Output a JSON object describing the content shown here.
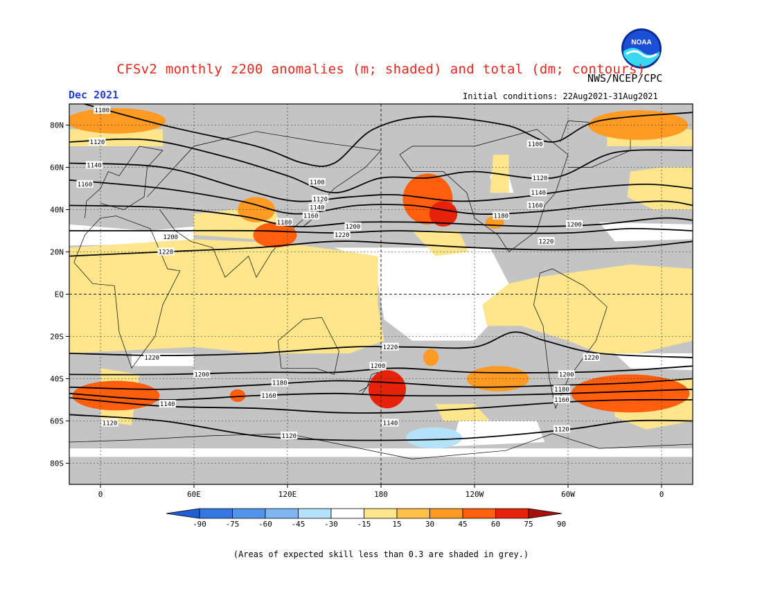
{
  "header": {
    "title": "CFSv2 monthly z200 anomalies (m; shaded) and total (dm; contours)",
    "agency": "NWS/NCEP/CPC",
    "month": "Dec 2021",
    "initial_conditions": "Initial conditions: 22Aug2021-31Aug2021",
    "logo_text": "NOAA"
  },
  "footnote": "(Areas of expected skill less than 0.3 are shaded in grey.)",
  "map": {
    "lat_ticks": [
      {
        "lat": 80,
        "label": "80N"
      },
      {
        "lat": 60,
        "label": "60N"
      },
      {
        "lat": 40,
        "label": "40N"
      },
      {
        "lat": 20,
        "label": "20N"
      },
      {
        "lat": 0,
        "label": "EQ"
      },
      {
        "lat": -20,
        "label": "20S"
      },
      {
        "lat": -40,
        "label": "40S"
      },
      {
        "lat": -60,
        "label": "60S"
      },
      {
        "lat": -80,
        "label": "80S"
      }
    ],
    "lon_ticks": [
      {
        "lon": 0,
        "label": "0"
      },
      {
        "lon": 60,
        "label": "60E"
      },
      {
        "lon": 120,
        "label": "120E"
      },
      {
        "lon": 180,
        "label": "180"
      },
      {
        "lon": 240,
        "label": "120W"
      },
      {
        "lon": 300,
        "label": "60W"
      },
      {
        "lon": 360,
        "label": "0"
      }
    ],
    "lon_range": [
      -20,
      380
    ],
    "lat_range": [
      -90,
      90
    ],
    "grey_color": "#c4c4c4",
    "anomaly_patches": [
      {
        "lon": 10,
        "lat": 82,
        "rx": 32,
        "ry": 6,
        "value": 50
      },
      {
        "lon": 345,
        "lat": 80,
        "rx": 32,
        "ry": 7,
        "value": 55
      },
      {
        "lon": 100,
        "lat": 40,
        "rx": 12,
        "ry": 6,
        "value": 50
      },
      {
        "lon": 112,
        "lat": 28,
        "rx": 14,
        "ry": 6,
        "value": 60
      },
      {
        "lon": 210,
        "lat": 45,
        "rx": 16,
        "ry": 12,
        "value": 70
      },
      {
        "lon": 220,
        "lat": 38,
        "rx": 9,
        "ry": 6,
        "value": 85
      },
      {
        "lon": 253,
        "lat": 34,
        "rx": 6,
        "ry": 3,
        "value": 50
      },
      {
        "lon": 10,
        "lat": -48,
        "rx": 28,
        "ry": 7,
        "value": 60
      },
      {
        "lon": 88,
        "lat": -48,
        "rx": 5,
        "ry": 3,
        "value": 65
      },
      {
        "lon": 184,
        "lat": -45,
        "rx": 12,
        "ry": 9,
        "value": 75
      },
      {
        "lon": 255,
        "lat": -40,
        "rx": 20,
        "ry": 6,
        "value": 55
      },
      {
        "lon": 212,
        "lat": -30,
        "rx": 5,
        "ry": 4,
        "value": 45
      },
      {
        "lon": 340,
        "lat": -47,
        "rx": 38,
        "ry": 9,
        "value": 65
      },
      {
        "lon": 214,
        "lat": -68,
        "rx": 18,
        "ry": 5,
        "value": -35
      },
      {
        "lon": 216,
        "lat": -68,
        "rx": 9,
        "ry": 3,
        "value": -45
      }
    ],
    "contours": [
      {
        "value": 1100,
        "label": "1100",
        "points": [
          [
            -20,
            92
          ],
          [
            40,
            80
          ],
          [
            100,
            70
          ],
          [
            130,
            62
          ],
          [
            150,
            62
          ],
          [
            175,
            78
          ],
          [
            210,
            84
          ],
          [
            260,
            80
          ],
          [
            290,
            72
          ],
          [
            320,
            82
          ],
          [
            380,
            86
          ]
        ]
      },
      {
        "value": 1120,
        "label": "1120",
        "points": [
          [
            -20,
            72
          ],
          [
            30,
            73
          ],
          [
            80,
            65
          ],
          [
            120,
            56
          ],
          [
            150,
            48
          ],
          [
            180,
            55
          ],
          [
            210,
            55
          ],
          [
            240,
            58
          ],
          [
            290,
            55
          ],
          [
            330,
            67
          ],
          [
            380,
            68
          ]
        ]
      },
      {
        "value": 1140,
        "label": "1140",
        "points": [
          [
            -20,
            62
          ],
          [
            40,
            60
          ],
          [
            90,
            50
          ],
          [
            125,
            44
          ],
          [
            160,
            46
          ],
          [
            190,
            47
          ],
          [
            230,
            44
          ],
          [
            270,
            46
          ],
          [
            310,
            50
          ],
          [
            350,
            52
          ],
          [
            380,
            50
          ]
        ]
      },
      {
        "value": 1160,
        "label": "1160",
        "points": [
          [
            -20,
            54
          ],
          [
            40,
            50
          ],
          [
            90,
            44
          ],
          [
            125,
            38
          ],
          [
            165,
            42
          ],
          [
            200,
            42
          ],
          [
            240,
            38
          ],
          [
            280,
            39
          ],
          [
            320,
            42
          ],
          [
            360,
            44
          ],
          [
            380,
            42
          ]
        ]
      },
      {
        "value": 1180,
        "label": "1180",
        "points": [
          [
            -20,
            42
          ],
          [
            40,
            41
          ],
          [
            90,
            37
          ],
          [
            125,
            32
          ],
          [
            165,
            34
          ],
          [
            205,
            34
          ],
          [
            240,
            33
          ],
          [
            280,
            32
          ],
          [
            320,
            33
          ],
          [
            360,
            36
          ],
          [
            380,
            35
          ]
        ]
      },
      {
        "value": 1200,
        "label": "1200",
        "points": [
          [
            -20,
            30
          ],
          [
            40,
            30
          ],
          [
            100,
            30
          ],
          [
            150,
            29
          ],
          [
            190,
            30
          ],
          [
            240,
            29
          ],
          [
            300,
            29
          ],
          [
            340,
            31
          ],
          [
            380,
            30
          ]
        ]
      },
      {
        "value": 1220,
        "label": "1220",
        "points": [
          [
            -20,
            18
          ],
          [
            40,
            20
          ],
          [
            100,
            22
          ],
          [
            150,
            25
          ],
          [
            190,
            24
          ],
          [
            240,
            22
          ],
          [
            290,
            21
          ],
          [
            340,
            22
          ],
          [
            380,
            25
          ]
        ]
      },
      {
        "value": 1220,
        "label": "1220",
        "points": [
          [
            -20,
            -28
          ],
          [
            40,
            -29
          ],
          [
            100,
            -28
          ],
          [
            160,
            -25
          ],
          [
            200,
            -25
          ],
          [
            240,
            -25
          ],
          [
            265,
            -18
          ],
          [
            285,
            -22
          ],
          [
            320,
            -28
          ],
          [
            380,
            -30
          ]
        ]
      },
      {
        "value": 1200,
        "label": "1200",
        "points": [
          [
            -20,
            -38
          ],
          [
            40,
            -38
          ],
          [
            100,
            -37
          ],
          [
            150,
            -37
          ],
          [
            190,
            -35
          ],
          [
            240,
            -37
          ],
          [
            300,
            -37
          ],
          [
            340,
            -36
          ],
          [
            380,
            -34
          ]
        ]
      },
      {
        "value": 1180,
        "label": "1180",
        "points": [
          [
            -20,
            -44
          ],
          [
            40,
            -45
          ],
          [
            100,
            -43
          ],
          [
            150,
            -41
          ],
          [
            190,
            -42
          ],
          [
            240,
            -44
          ],
          [
            300,
            -43
          ],
          [
            340,
            -42
          ],
          [
            380,
            -40
          ]
        ]
      },
      {
        "value": 1160,
        "label": "1160",
        "points": [
          [
            -20,
            -47
          ],
          [
            40,
            -50
          ],
          [
            100,
            -48
          ],
          [
            150,
            -47
          ],
          [
            190,
            -48
          ],
          [
            240,
            -48
          ],
          [
            300,
            -47
          ],
          [
            340,
            -46
          ],
          [
            380,
            -45
          ]
        ]
      },
      {
        "value": 1140,
        "label": "1140",
        "points": [
          [
            -20,
            -49
          ],
          [
            40,
            -53
          ],
          [
            100,
            -54
          ],
          [
            150,
            -56
          ],
          [
            190,
            -56
          ],
          [
            240,
            -54
          ],
          [
            300,
            -51
          ],
          [
            340,
            -50
          ],
          [
            380,
            -50
          ]
        ]
      },
      {
        "value": 1120,
        "label": "1120",
        "points": [
          [
            -20,
            -57
          ],
          [
            40,
            -60
          ],
          [
            100,
            -67
          ],
          [
            150,
            -69
          ],
          [
            200,
            -69
          ],
          [
            240,
            -68
          ],
          [
            300,
            -64
          ],
          [
            340,
            -60
          ],
          [
            380,
            -60
          ]
        ]
      }
    ],
    "contour_labels": [
      {
        "text": "1100",
        "lon": 1,
        "lat": 87
      },
      {
        "text": "1120",
        "lon": -2,
        "lat": 72
      },
      {
        "text": "1140",
        "lon": -4,
        "lat": 61
      },
      {
        "text": "1160",
        "lon": -10,
        "lat": 52
      },
      {
        "text": "1100",
        "lon": 139,
        "lat": 53
      },
      {
        "text": "1120",
        "lon": 141,
        "lat": 45
      },
      {
        "text": "1140",
        "lon": 139,
        "lat": 41
      },
      {
        "text": "1160",
        "lon": 135,
        "lat": 37
      },
      {
        "text": "1180",
        "lon": 118,
        "lat": 34
      },
      {
        "text": "1200",
        "lon": 162,
        "lat": 32
      },
      {
        "text": "1220",
        "lon": 155,
        "lat": 28
      },
      {
        "text": "1200",
        "lon": 45,
        "lat": 27
      },
      {
        "text": "1220",
        "lon": 42,
        "lat": 20
      },
      {
        "text": "1100",
        "lon": 279,
        "lat": 71
      },
      {
        "text": "1120",
        "lon": 282,
        "lat": 55
      },
      {
        "text": "1140",
        "lon": 281,
        "lat": 48
      },
      {
        "text": "1160",
        "lon": 279,
        "lat": 42
      },
      {
        "text": "1180",
        "lon": 257,
        "lat": 37
      },
      {
        "text": "1200",
        "lon": 304,
        "lat": 33
      },
      {
        "text": "1220",
        "lon": 286,
        "lat": 25
      },
      {
        "text": "1220",
        "lon": 33,
        "lat": -30
      },
      {
        "text": "1200",
        "lon": 65,
        "lat": -38
      },
      {
        "text": "1180",
        "lon": 115,
        "lat": -42
      },
      {
        "text": "1160",
        "lon": 108,
        "lat": -48
      },
      {
        "text": "1140",
        "lon": 43,
        "lat": -52
      },
      {
        "text": "1120",
        "lon": 6,
        "lat": -61
      },
      {
        "text": "1120",
        "lon": 121,
        "lat": -67
      },
      {
        "text": "1220",
        "lon": 186,
        "lat": -25
      },
      {
        "text": "1200",
        "lon": 178,
        "lat": -34
      },
      {
        "text": "1140",
        "lon": 186,
        "lat": -61
      },
      {
        "text": "1220",
        "lon": 315,
        "lat": -30
      },
      {
        "text": "1200",
        "lon": 299,
        "lat": -38
      },
      {
        "text": "1180",
        "lon": 296,
        "lat": -45
      },
      {
        "text": "1160",
        "lon": 296,
        "lat": -50
      },
      {
        "text": "1120",
        "lon": 296,
        "lat": -64
      }
    ]
  },
  "colorbar": {
    "colors": [
      "#1e5fd8",
      "#3578e4",
      "#5294ec",
      "#7fb6f2",
      "#b4e2fa",
      "#ffffff",
      "#ffe68c",
      "#ffc04a",
      "#ff9a22",
      "#ff5e0c",
      "#e8220a",
      "#a81008"
    ],
    "labels": [
      "-90",
      "-75",
      "-60",
      "-45",
      "-30",
      "-15",
      "15",
      "30",
      "45",
      "60",
      "75",
      "90"
    ]
  }
}
